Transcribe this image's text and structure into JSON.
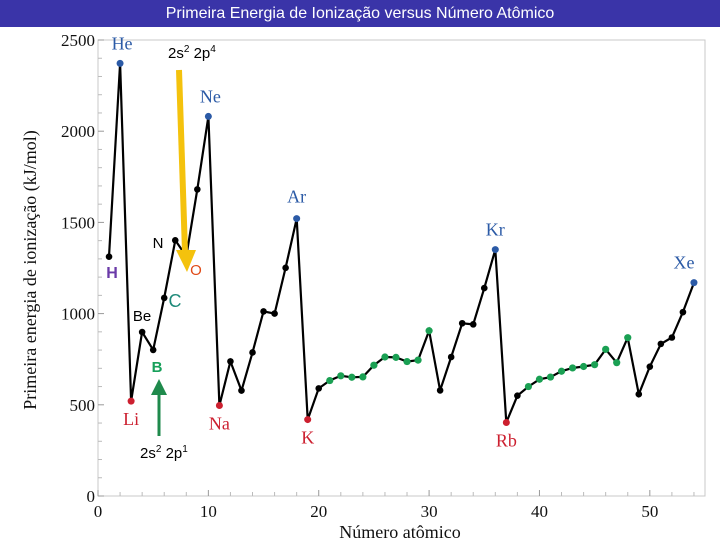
{
  "slide": {
    "title": "Primeira Energia de Ionização versus Número Atômico"
  },
  "chart_data": {
    "type": "line",
    "title": "Primeira Energia de Ionização versus Número Atômico",
    "xlabel": "Número atômico",
    "ylabel": "Primeira energia de ionização (kJ/mol)",
    "xlim": [
      0,
      55
    ],
    "ylim": [
      0,
      2500
    ],
    "x_ticks": [
      "0",
      "10",
      "20",
      "30",
      "40",
      "50"
    ],
    "y_ticks": [
      "0",
      "500",
      "1000",
      "1500",
      "2000",
      "2500"
    ],
    "grid": false,
    "series": [
      {
        "x": [
          1,
          2,
          3,
          4,
          5,
          6,
          7,
          8,
          9,
          10,
          11,
          12,
          13,
          14,
          15,
          16,
          17,
          18,
          19,
          20,
          21,
          22,
          23,
          24,
          25,
          26,
          27,
          28,
          29,
          30,
          31,
          32,
          33,
          34,
          35,
          36,
          37,
          38,
          39,
          40,
          41,
          42,
          43,
          44,
          45,
          46,
          47,
          48,
          49,
          50,
          51,
          52,
          53,
          54
        ],
        "y": [
          1312,
          2372,
          520,
          899,
          801,
          1086,
          1402,
          1314,
          1681,
          2081,
          496,
          738,
          578,
          787,
          1012,
          1000,
          1251,
          1521,
          419,
          590,
          633,
          659,
          651,
          653,
          717,
          762,
          760,
          737,
          745,
          906,
          579,
          762,
          947,
          941,
          1140,
          1351,
          403,
          550,
          600,
          640,
          652,
          684,
          702,
          710,
          720,
          804,
          731,
          868,
          558,
          709,
          834,
          869,
          1008,
          1170
        ]
      }
    ],
    "colors": {
      "line": "#000000",
      "default_point": "#000000",
      "noble_gas": "#2b5aa6",
      "alkali_metal": "#cc1f2f",
      "transition_metal": "#1aa053",
      "arrow_down": "#f4c20d",
      "arrow_up": "#1f8a4c",
      "title_bg": "#3a34a8",
      "element_label_nonbold": "#2b5aa6",
      "label_O": "#e04a17",
      "label_C": "#1f8a7a",
      "label_B": "#17a05a",
      "label_H": "#6a3aa8"
    },
    "noble_gas_points": [
      2,
      10,
      18,
      36,
      54
    ],
    "alkali_metal_points": [
      3,
      11,
      19,
      37
    ],
    "transition_metal_points": [
      21,
      22,
      23,
      24,
      25,
      26,
      27,
      28,
      29,
      30,
      39,
      40,
      41,
      42,
      43,
      44,
      45,
      46,
      47,
      48
    ],
    "element_labels": [
      {
        "z": 2,
        "text": "He",
        "color": "#2b5aa6"
      },
      {
        "z": 10,
        "text": "Ne",
        "color": "#2b5aa6"
      },
      {
        "z": 18,
        "text": "Ar",
        "color": "#2b5aa6"
      },
      {
        "z": 36,
        "text": "Kr",
        "color": "#2b5aa6"
      },
      {
        "z": 54,
        "text": "Xe",
        "color": "#2b5aa6"
      },
      {
        "z": 3,
        "text": "Li",
        "color": "#cc1f2f"
      },
      {
        "z": 11,
        "text": "Na",
        "color": "#cc1f2f"
      },
      {
        "z": 19,
        "text": "K",
        "color": "#cc1f2f"
      },
      {
        "z": 37,
        "text": "Rb",
        "color": "#cc1f2f"
      }
    ],
    "annotations": {
      "H": "H",
      "Be": "Be",
      "B": "B",
      "C": "C",
      "N": "N",
      "O": "O",
      "config_2p4": {
        "base": "2s",
        "sup1": "2",
        "mid": " 2p",
        "sup2": "4"
      },
      "config_2p1": {
        "base": "2s",
        "sup1": "2",
        "mid": " 2p",
        "sup2": "1"
      }
    }
  }
}
